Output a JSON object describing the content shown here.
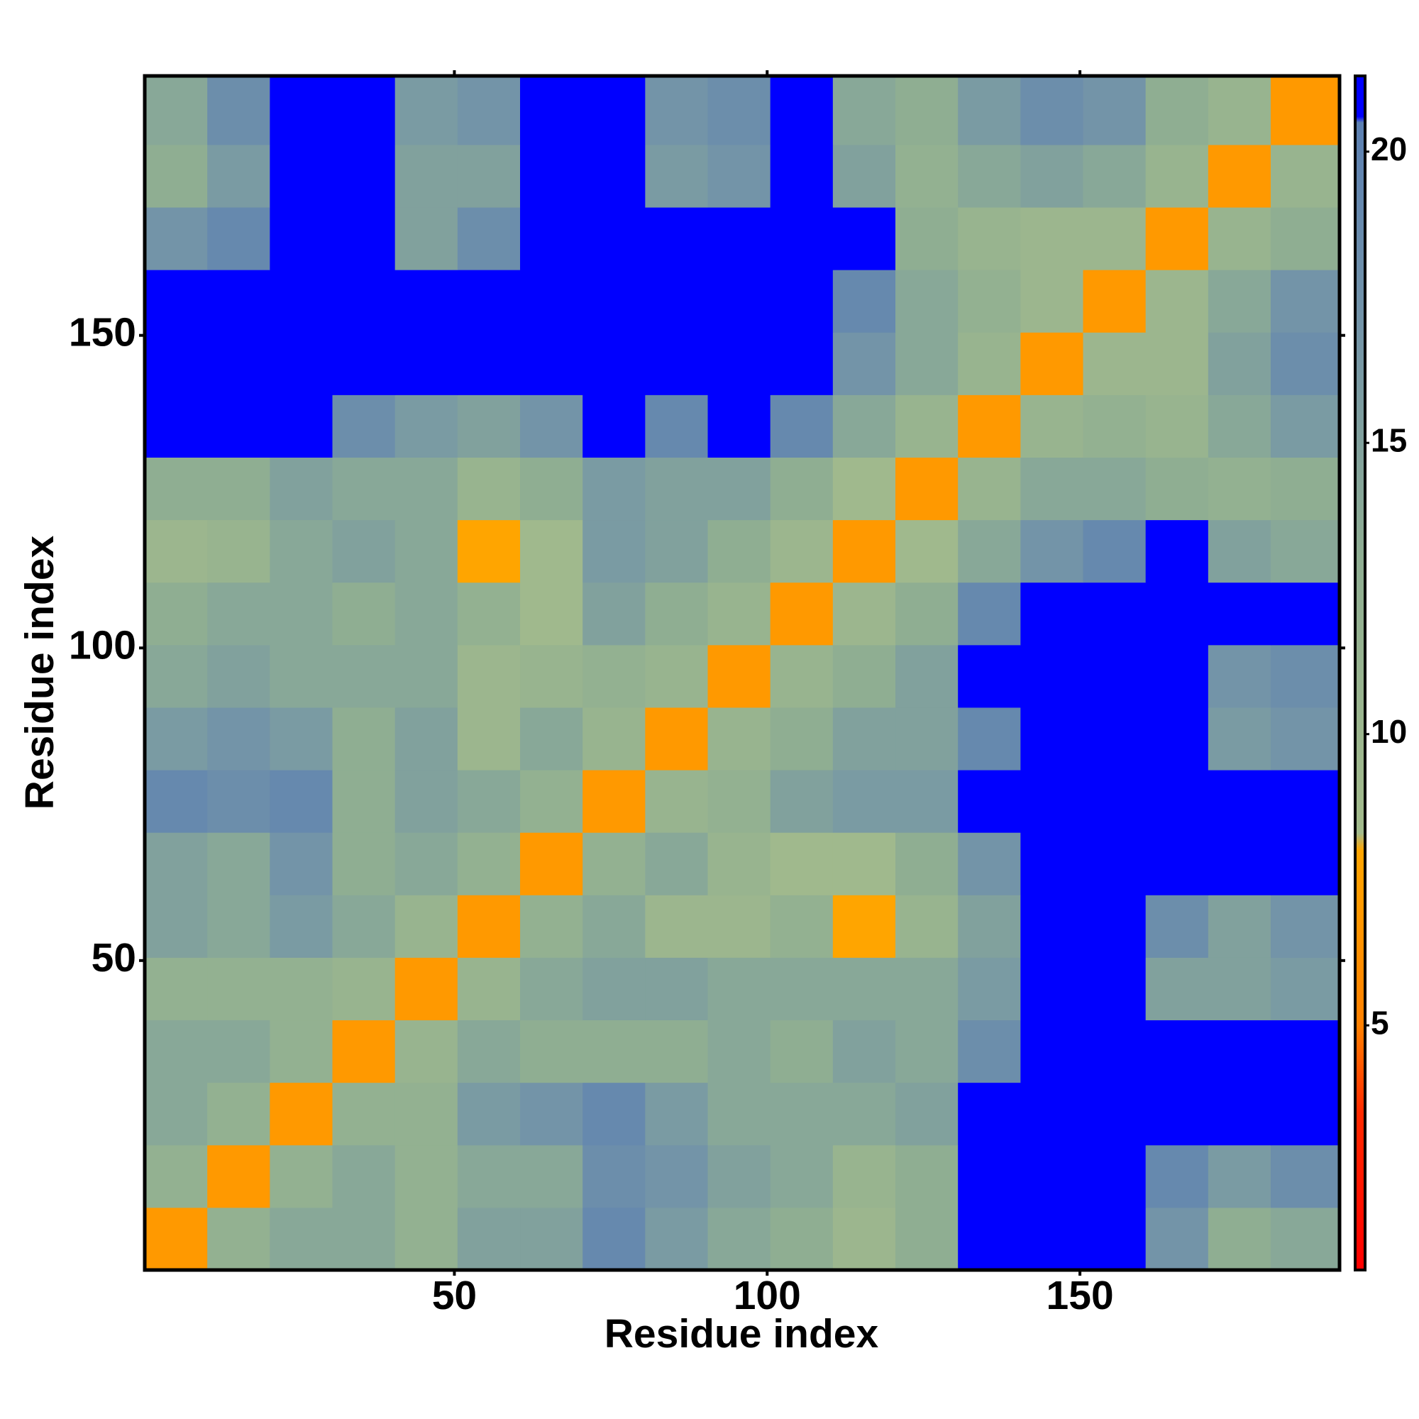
{
  "chart_data": {
    "type": "heatmap",
    "x_label": "Residue index",
    "y_label": "Residue index",
    "x": [
      0.5,
      10.5,
      20.5,
      30.5,
      40.5,
      50.5,
      60.5,
      70.5,
      80.5,
      90.5,
      100.5,
      110.5,
      120.5,
      130.5,
      140.5,
      150.5,
      160.5,
      170.5,
      180.5,
      191.5
    ],
    "y": [
      0.5,
      10.5,
      20.5,
      30.5,
      40.5,
      50.5,
      60.5,
      70.5,
      80.5,
      90.5,
      100.5,
      110.5,
      120.5,
      130.5,
      140.5,
      150.5,
      160.5,
      170.5,
      180.5,
      191.5
    ],
    "z": [
      [
        7,
        12,
        14,
        14,
        12,
        15,
        15,
        19,
        16,
        14,
        13,
        10,
        13,
        21,
        21,
        21,
        17,
        13,
        14
      ],
      [
        12,
        7,
        12,
        14,
        12,
        14,
        14,
        18,
        17,
        15,
        14,
        11,
        13,
        21,
        21,
        21,
        19,
        16,
        18
      ],
      [
        14,
        12,
        7,
        12,
        12,
        16,
        17,
        19,
        16,
        14,
        14,
        14,
        15,
        21,
        21,
        21,
        21,
        21,
        21
      ],
      [
        14,
        14,
        12,
        7,
        11,
        14,
        13,
        13,
        13,
        14,
        13,
        15,
        14,
        18,
        21,
        21,
        21,
        21,
        21
      ],
      [
        12,
        12,
        12,
        11,
        7,
        11,
        14,
        15,
        15,
        14,
        14,
        14,
        14,
        16,
        21,
        21,
        15,
        15,
        16
      ],
      [
        15,
        14,
        16,
        14,
        11,
        7,
        12,
        14,
        10,
        10,
        12,
        8,
        11,
        15,
        21,
        21,
        18,
        15,
        17
      ],
      [
        15,
        14,
        17,
        13,
        14,
        12,
        7,
        12,
        14,
        11,
        9,
        9,
        13,
        17,
        21,
        21,
        21,
        21,
        21
      ],
      [
        19,
        18,
        19,
        13,
        15,
        14,
        12,
        7,
        11,
        12,
        15,
        16,
        16,
        21,
        21,
        21,
        21,
        21,
        21
      ],
      [
        16,
        17,
        16,
        13,
        15,
        10,
        14,
        11,
        7,
        11,
        13,
        15,
        15,
        19,
        21,
        21,
        21,
        16,
        17
      ],
      [
        14,
        15,
        14,
        14,
        14,
        10,
        11,
        12,
        11,
        7,
        11,
        13,
        15,
        21,
        21,
        21,
        21,
        17,
        18
      ],
      [
        13,
        14,
        14,
        13,
        14,
        12,
        9,
        15,
        13,
        11,
        7,
        10,
        13,
        19,
        21,
        21,
        21,
        21,
        21
      ],
      [
        10,
        11,
        14,
        15,
        14,
        8,
        9,
        16,
        15,
        13,
        10,
        7,
        9,
        14,
        17,
        19,
        21,
        15,
        14
      ],
      [
        13,
        13,
        15,
        14,
        14,
        11,
        13,
        16,
        15,
        15,
        13,
        9,
        7,
        11,
        14,
        14,
        13,
        12,
        13
      ],
      [
        21,
        21,
        21,
        18,
        16,
        15,
        17,
        21,
        19,
        21,
        19,
        14,
        11,
        7,
        11,
        12,
        11,
        14,
        16
      ],
      [
        21,
        21,
        21,
        21,
        21,
        21,
        21,
        21,
        21,
        21,
        21,
        17,
        14,
        11,
        7,
        10,
        10,
        15,
        18
      ],
      [
        21,
        21,
        21,
        21,
        21,
        21,
        21,
        21,
        21,
        21,
        21,
        19,
        14,
        12,
        10,
        7,
        10,
        14,
        17
      ],
      [
        17,
        19,
        21,
        21,
        15,
        18,
        21,
        21,
        21,
        21,
        21,
        21,
        13,
        11,
        10,
        10,
        7,
        11,
        13
      ],
      [
        13,
        16,
        21,
        21,
        15,
        15,
        21,
        21,
        16,
        17,
        21,
        15,
        12,
        14,
        15,
        14,
        11,
        7,
        11
      ],
      [
        14,
        18,
        21,
        21,
        16,
        17,
        21,
        21,
        17,
        18,
        21,
        14,
        13,
        16,
        18,
        17,
        13,
        11,
        7
      ]
    ],
    "xlim": [
      0.5,
      191.5
    ],
    "ylim": [
      0.5,
      191.5
    ],
    "xticks": [
      50,
      100,
      150
    ],
    "yticks": [
      50,
      100,
      150
    ],
    "clim": [
      0.8,
      21.3
    ],
    "cticks": [
      5,
      10,
      15,
      20
    ],
    "colorscale": [
      [
        0.8,
        "#ff0000"
      ],
      [
        3.5,
        "#ff2a00"
      ],
      [
        5,
        "#ff8000"
      ],
      [
        8,
        "#ffa500"
      ],
      [
        8.3,
        "#a3bb8c"
      ],
      [
        13,
        "#8fae92"
      ],
      [
        17,
        "#7394a8"
      ],
      [
        20.5,
        "#5c80b2"
      ],
      [
        20.6,
        "#0000ff"
      ],
      [
        21.3,
        "#0000ff"
      ]
    ]
  }
}
